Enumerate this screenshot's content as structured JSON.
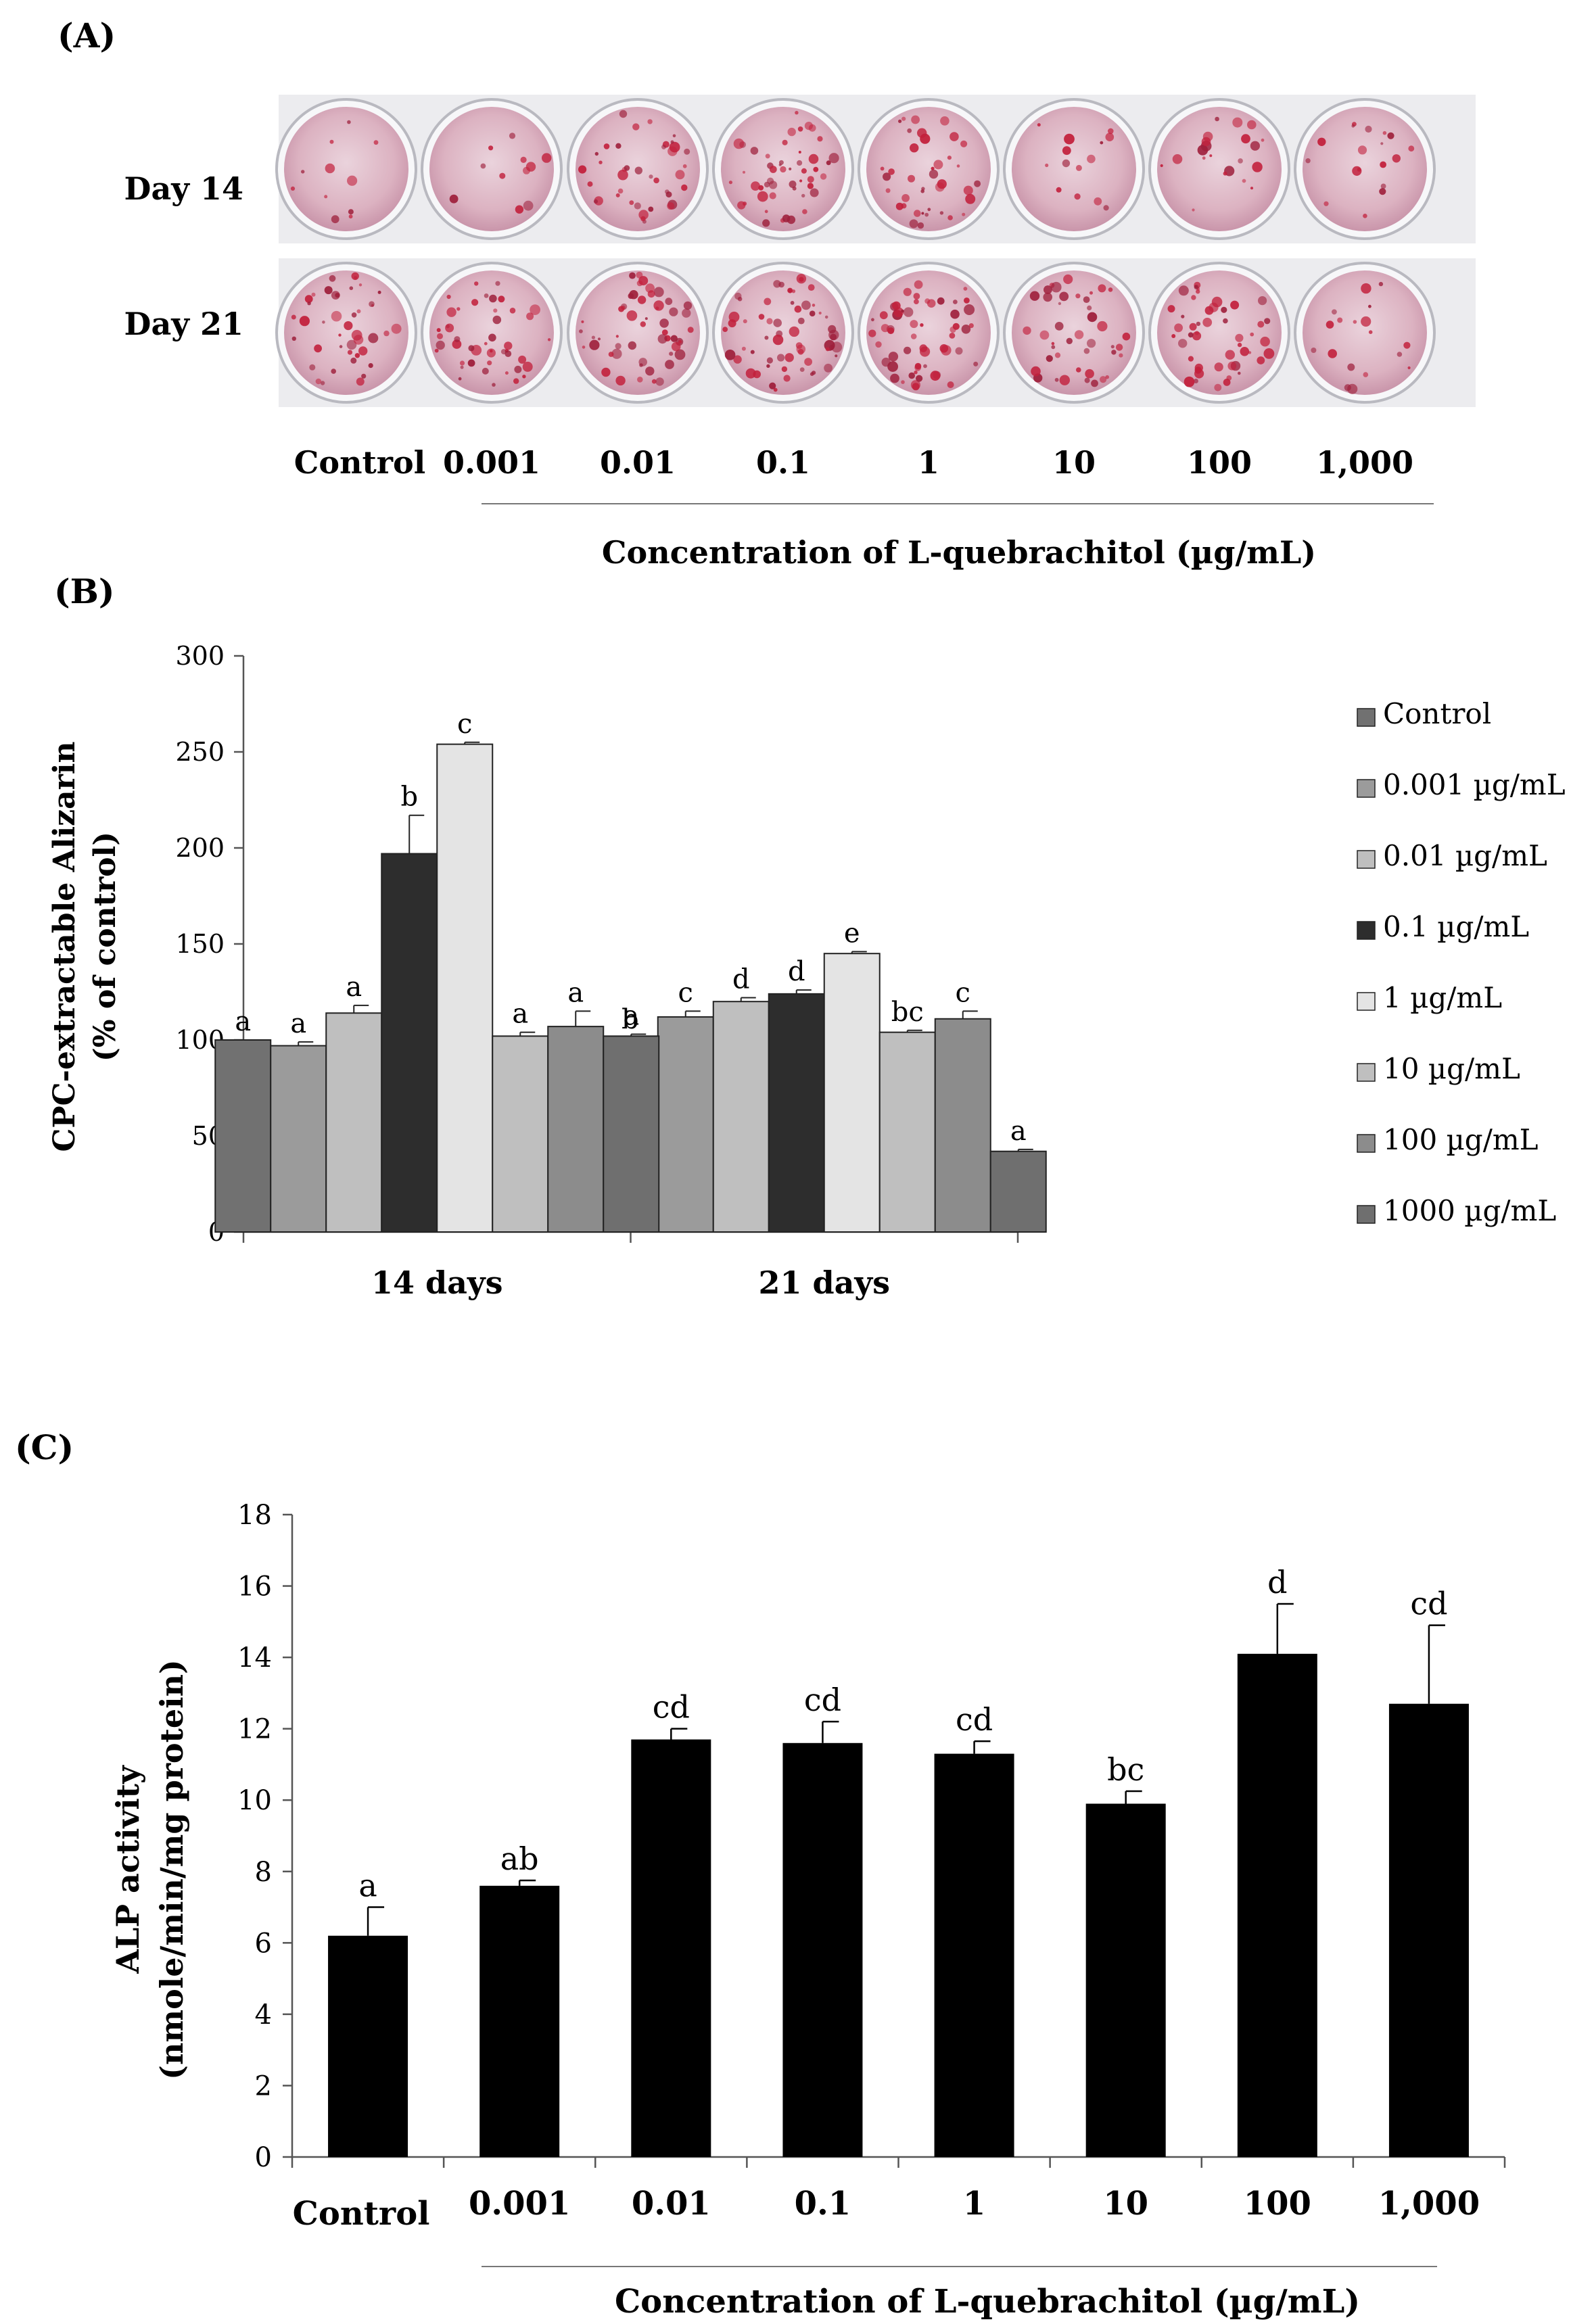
{
  "panel_labels": {
    "a": "(A)",
    "b": "(B)",
    "c": "(C)"
  },
  "panel_a": {
    "row_labels": [
      "Day 14",
      "Day 21"
    ],
    "concentrations": [
      "Control",
      "0.001",
      "0.01",
      "0.1",
      "1",
      "10",
      "100",
      "1,000"
    ],
    "xlabel": "Concentration of L-quebrachitol (µg/mL)",
    "stain_intensity": {
      "Day 14": [
        0.15,
        0.15,
        0.55,
        0.7,
        0.55,
        0.2,
        0.3,
        0.25
      ],
      "Day 21": [
        0.6,
        0.65,
        0.75,
        0.85,
        0.8,
        0.6,
        0.7,
        0.25
      ]
    }
  },
  "chart_data": [
    {
      "id": "B",
      "type": "bar",
      "title": "",
      "xlabel": "",
      "ylabel": "CPC-extractable Alizarin",
      "ylabel2": "(% of control)",
      "categories": [
        "14 days",
        "21 days"
      ],
      "ylim": [
        0,
        300
      ],
      "yticks": [
        0,
        50,
        100,
        150,
        200,
        250,
        300
      ],
      "legend_position": "right",
      "series": [
        {
          "name": "Control",
          "color": "#717171",
          "values": [
            100,
            100
          ],
          "errors": [
            0,
            1
          ],
          "letters": [
            "a",
            "b"
          ]
        },
        {
          "name": "0.001 µg/mL",
          "color": "#9b9b9b",
          "values": [
            97,
            112
          ],
          "errors": [
            2,
            3
          ],
          "letters": [
            "a",
            "c"
          ]
        },
        {
          "name": "0.01 µg/mL",
          "color": "#bfbfbf",
          "values": [
            114,
            120
          ],
          "errors": [
            4,
            2
          ],
          "letters": [
            "a",
            "d"
          ]
        },
        {
          "name": "0.1 µg/mL",
          "color": "#2d2d2d",
          "values": [
            197,
            124
          ],
          "errors": [
            20,
            2
          ],
          "letters": [
            "b",
            "d"
          ]
        },
        {
          "name": "1 µg/mL",
          "color": "#e4e4e4",
          "values": [
            254,
            145
          ],
          "errors": [
            1,
            1
          ],
          "letters": [
            "c",
            "e"
          ]
        },
        {
          "name": "10 µg/mL",
          "color": "#bfbfbf",
          "values": [
            102,
            104
          ],
          "errors": [
            2,
            1
          ],
          "letters": [
            "a",
            "bc"
          ]
        },
        {
          "name": "100 µg/mL",
          "color": "#8c8c8c",
          "values": [
            107,
            111
          ],
          "errors": [
            8,
            4
          ],
          "letters": [
            "a",
            "c"
          ]
        },
        {
          "name": "1000 µg/mL",
          "color": "#6f6f6f",
          "values": [
            102,
            42
          ],
          "errors": [
            1,
            1
          ],
          "letters": [
            "a",
            "a"
          ]
        }
      ]
    },
    {
      "id": "C",
      "type": "bar",
      "title": "",
      "xlabel": "Concentration of L-quebrachitol (µg/mL)",
      "ylabel": "ALP activity",
      "ylabel2": "(nmole/min/mg protein)",
      "categories": [
        "Control",
        "0.001",
        "0.01",
        "0.1",
        "1",
        "10",
        "100",
        "1,000"
      ],
      "values": [
        6.2,
        7.6,
        11.7,
        11.6,
        11.3,
        9.9,
        14.1,
        12.7
      ],
      "errors": [
        0.8,
        0.15,
        0.3,
        0.6,
        0.35,
        0.35,
        1.4,
        2.2
      ],
      "letters": [
        "a",
        "ab",
        "cd",
        "cd",
        "cd",
        "bc",
        "d",
        "cd"
      ],
      "color": "#000000",
      "ylim": [
        0,
        18
      ],
      "yticks": [
        0,
        2,
        4,
        6,
        8,
        10,
        12,
        14,
        16,
        18
      ]
    }
  ]
}
